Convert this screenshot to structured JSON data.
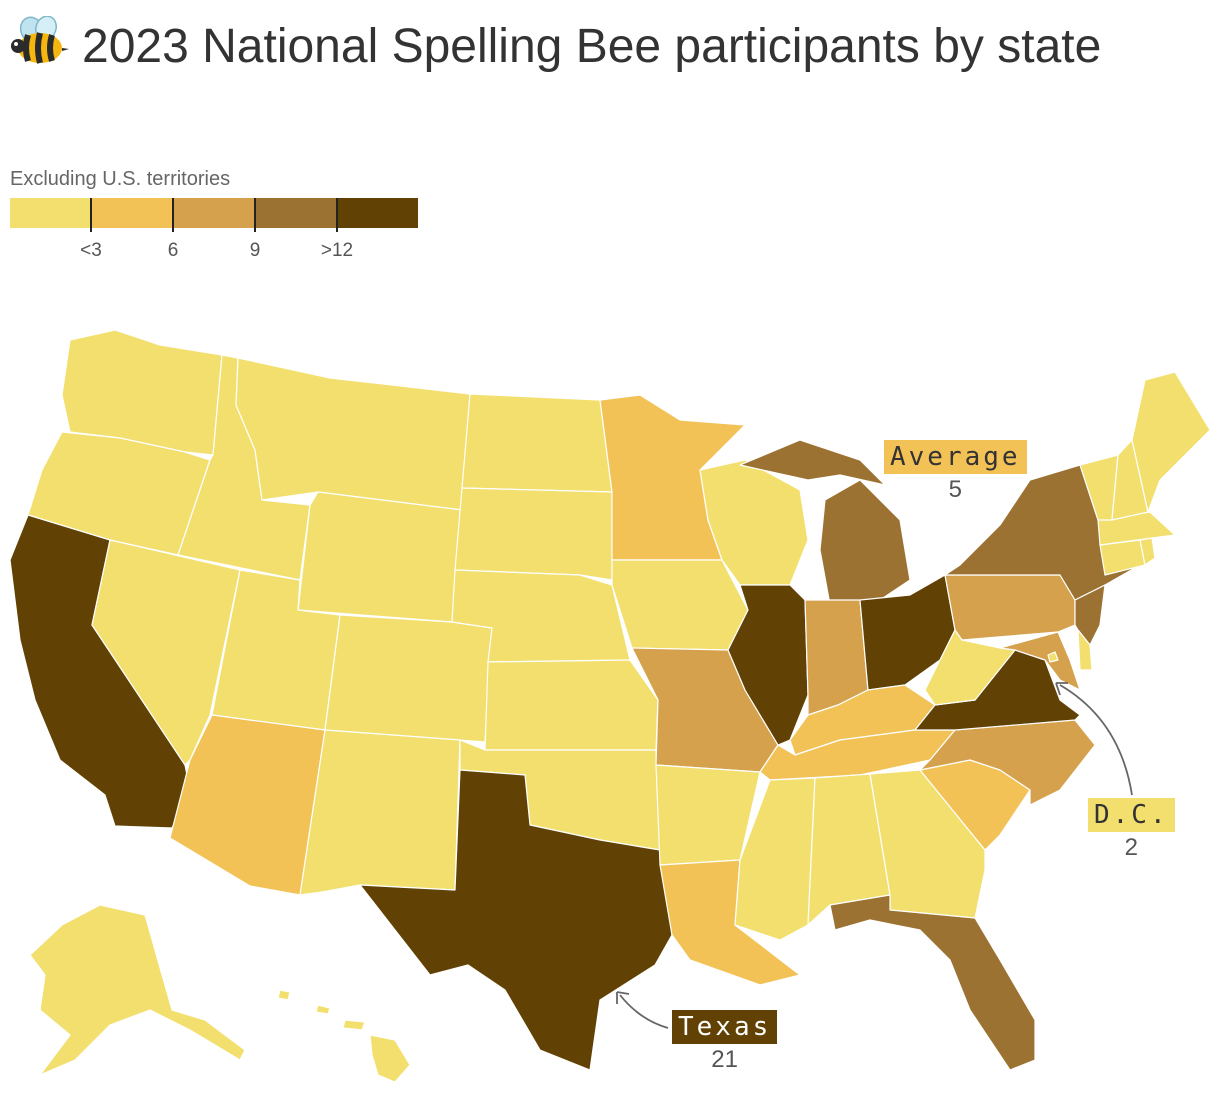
{
  "title": "2023 National Spelling Bee participants by state",
  "title_icon": "bee-icon",
  "subtitle": "Excluding U.S. territories",
  "legend": {
    "colors": [
      "#f2df6e",
      "#f2c257",
      "#d5a14c",
      "#9b7232",
      "#614204"
    ],
    "ticks": [
      "<3",
      "6",
      "9",
      ">12"
    ]
  },
  "callouts": {
    "average": {
      "label": "Average",
      "value": "5",
      "color": "#f2c257",
      "text_color": "#333333"
    },
    "dc": {
      "label": "D.C.",
      "value": "2",
      "color": "#f2df6e",
      "text_color": "#333333"
    },
    "texas": {
      "label": "Texas",
      "value": "21",
      "color": "#614204",
      "text_color": "#ffffff"
    }
  },
  "map_data": {
    "states": [
      {
        "id": "WA",
        "level": 0
      },
      {
        "id": "OR",
        "level": 0
      },
      {
        "id": "CA",
        "level": 4
      },
      {
        "id": "ID",
        "level": 0
      },
      {
        "id": "NV",
        "level": 0
      },
      {
        "id": "MT",
        "level": 0
      },
      {
        "id": "WY",
        "level": 0
      },
      {
        "id": "UT",
        "level": 0
      },
      {
        "id": "AZ",
        "level": 1
      },
      {
        "id": "CO",
        "level": 0
      },
      {
        "id": "NM",
        "level": 0
      },
      {
        "id": "ND",
        "level": 0
      },
      {
        "id": "SD",
        "level": 0
      },
      {
        "id": "NE",
        "level": 0
      },
      {
        "id": "KS",
        "level": 0
      },
      {
        "id": "OK",
        "level": 0
      },
      {
        "id": "TX",
        "level": 4
      },
      {
        "id": "MN",
        "level": 1
      },
      {
        "id": "IA",
        "level": 0
      },
      {
        "id": "MO",
        "level": 2
      },
      {
        "id": "AR",
        "level": 0
      },
      {
        "id": "LA",
        "level": 1
      },
      {
        "id": "WI",
        "level": 0
      },
      {
        "id": "IL",
        "level": 4
      },
      {
        "id": "MI",
        "level": 3
      },
      {
        "id": "IN",
        "level": 2
      },
      {
        "id": "OH",
        "level": 4
      },
      {
        "id": "KY",
        "level": 1
      },
      {
        "id": "TN",
        "level": 1
      },
      {
        "id": "MS",
        "level": 0
      },
      {
        "id": "AL",
        "level": 0
      },
      {
        "id": "GA",
        "level": 0
      },
      {
        "id": "FL",
        "level": 3
      },
      {
        "id": "SC",
        "level": 1
      },
      {
        "id": "NC",
        "level": 2
      },
      {
        "id": "VA",
        "level": 4
      },
      {
        "id": "WV",
        "level": 0
      },
      {
        "id": "PA",
        "level": 2
      },
      {
        "id": "NY",
        "level": 3
      },
      {
        "id": "NJ",
        "level": 3
      },
      {
        "id": "MD",
        "level": 2
      },
      {
        "id": "DE",
        "level": 0
      },
      {
        "id": "DC",
        "level": 0
      },
      {
        "id": "CT",
        "level": 0
      },
      {
        "id": "RI",
        "level": 0
      },
      {
        "id": "MA",
        "level": 0
      },
      {
        "id": "VT",
        "level": 0
      },
      {
        "id": "NH",
        "level": 0
      },
      {
        "id": "ME",
        "level": 0
      },
      {
        "id": "AK",
        "level": 0
      },
      {
        "id": "HI",
        "level": 0
      }
    ]
  }
}
